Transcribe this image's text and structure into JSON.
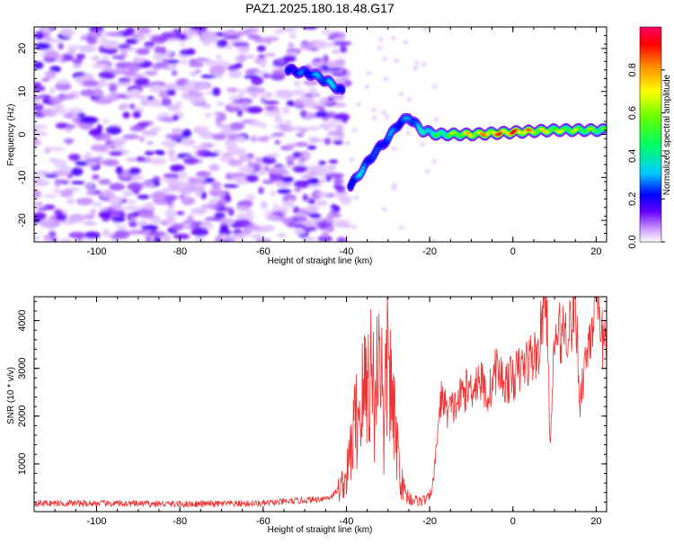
{
  "title": "PAZ1.2025.180.18.48.G17",
  "chart_data": [
    {
      "type": "heatmap",
      "title": "PAZ1.2025.180.18.48.G17",
      "xlabel": "Height of straight line (km)",
      "ylabel": "Frequency (Hz)",
      "xlim": [
        -115,
        22.5
      ],
      "ylim": [
        -25,
        25
      ],
      "x_ticks": [
        -100,
        -80,
        -60,
        -40,
        -20,
        0,
        20
      ],
      "y_ticks": [
        -20,
        -10,
        0,
        10,
        20
      ],
      "colorbar": {
        "label": "Normalized spectral amplitude",
        "range": [
          0,
          1
        ],
        "ticks": [
          0.0,
          0.2,
          0.4,
          0.6,
          0.8
        ],
        "colors": [
          "#ffffff",
          "#cc99ff",
          "#6600ff",
          "#0000ff",
          "#00ccff",
          "#00ff66",
          "#66ff00",
          "#ffff00",
          "#ff8800",
          "#ff0000",
          "#ff0066"
        ]
      },
      "signal_track": {
        "x": [
          -54,
          -48,
          -44,
          -41,
          -39,
          -36,
          -33,
          -30,
          -28,
          -25,
          -22,
          -18,
          -10,
          0,
          10,
          22
        ],
        "frequency": [
          15,
          14,
          12,
          10,
          -12,
          -8,
          -4,
          -1,
          2,
          4,
          1,
          0,
          0,
          0.5,
          1,
          1
        ],
        "amplitude": [
          0.25,
          0.3,
          0.35,
          0.3,
          0.3,
          0.35,
          0.25,
          0.3,
          0.3,
          0.3,
          0.4,
          0.5,
          0.8,
          0.95,
          0.7,
          0.6
        ]
      }
    },
    {
      "type": "line",
      "xlabel": "Height of straight line (km)",
      "ylabel": "SNR (10 * v/v)",
      "xlim": [
        -115,
        22.5
      ],
      "ylim": [
        0,
        4500
      ],
      "x_ticks": [
        -100,
        -80,
        -60,
        -40,
        -20,
        0,
        20
      ],
      "y_ticks": [
        1000,
        2000,
        3000,
        4000
      ],
      "line_color": "#ee3333",
      "series": [
        {
          "x": [
            -115,
            -100,
            -80,
            -60,
            -48,
            -44,
            -42,
            -40,
            -38,
            -36,
            -34,
            -33,
            -32,
            -31,
            -30,
            -29,
            -28,
            -27,
            -26,
            -25,
            -24,
            -22,
            -20,
            -19,
            -18,
            -17,
            -16,
            -14,
            -12,
            -10,
            -8,
            -6,
            -4,
            -2,
            0,
            2,
            4,
            6,
            8,
            9,
            10,
            12,
            14,
            15,
            16,
            18,
            20,
            21,
            22.5
          ],
          "values": [
            180,
            170,
            160,
            170,
            250,
            300,
            450,
            700,
            1800,
            2400,
            3000,
            2200,
            4200,
            1400,
            3700,
            2000,
            1600,
            700,
            400,
            300,
            250,
            220,
            300,
            700,
            1800,
            2500,
            2100,
            2200,
            2500,
            2600,
            2800,
            2400,
            3000,
            2700,
            2800,
            3000,
            3200,
            3300,
            4600,
            1300,
            3600,
            3800,
            3900,
            4500,
            2300,
            3500,
            4400,
            3600,
            3600
          ]
        }
      ]
    }
  ]
}
